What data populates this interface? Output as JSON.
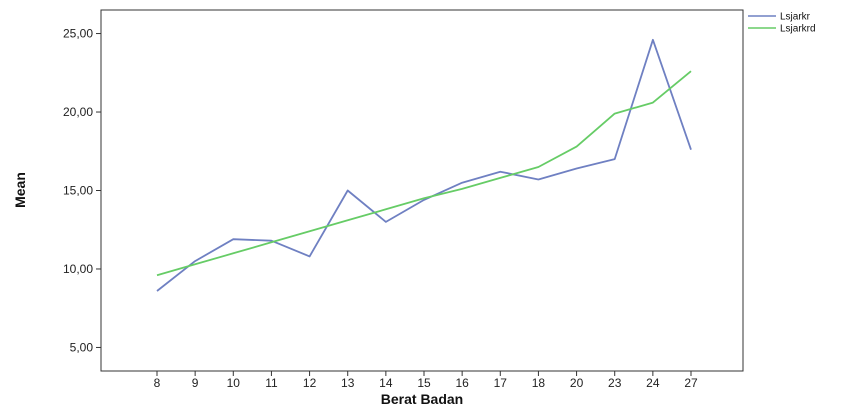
{
  "chart_data": {
    "type": "line",
    "xlabel": "Berat Badan",
    "ylabel": "Mean",
    "categories": [
      "8",
      "9",
      "10",
      "11",
      "12",
      "13",
      "14",
      "15",
      "16",
      "17",
      "18",
      "20",
      "23",
      "24",
      "27"
    ],
    "ylim": [
      3.5,
      26.5
    ],
    "yticks": [
      5,
      10,
      15,
      20,
      25
    ],
    "ytick_labels": [
      "5,00",
      "10,00",
      "15,00",
      "20,00",
      "25,00"
    ],
    "grid": false,
    "legend_position": "top-right",
    "series": [
      {
        "name": "Lsjarkr",
        "color": "#6f80c2",
        "values": [
          8.6,
          10.5,
          11.9,
          11.8,
          10.8,
          15.0,
          13.0,
          14.4,
          15.5,
          16.2,
          15.7,
          16.4,
          17.0,
          24.6,
          17.6
        ]
      },
      {
        "name": "Lsjarkrd",
        "color": "#66cc66",
        "values": [
          9.6,
          10.3,
          11.0,
          11.7,
          12.4,
          13.1,
          13.8,
          14.5,
          15.1,
          15.8,
          16.5,
          17.8,
          19.9,
          20.6,
          22.6
        ]
      }
    ]
  }
}
